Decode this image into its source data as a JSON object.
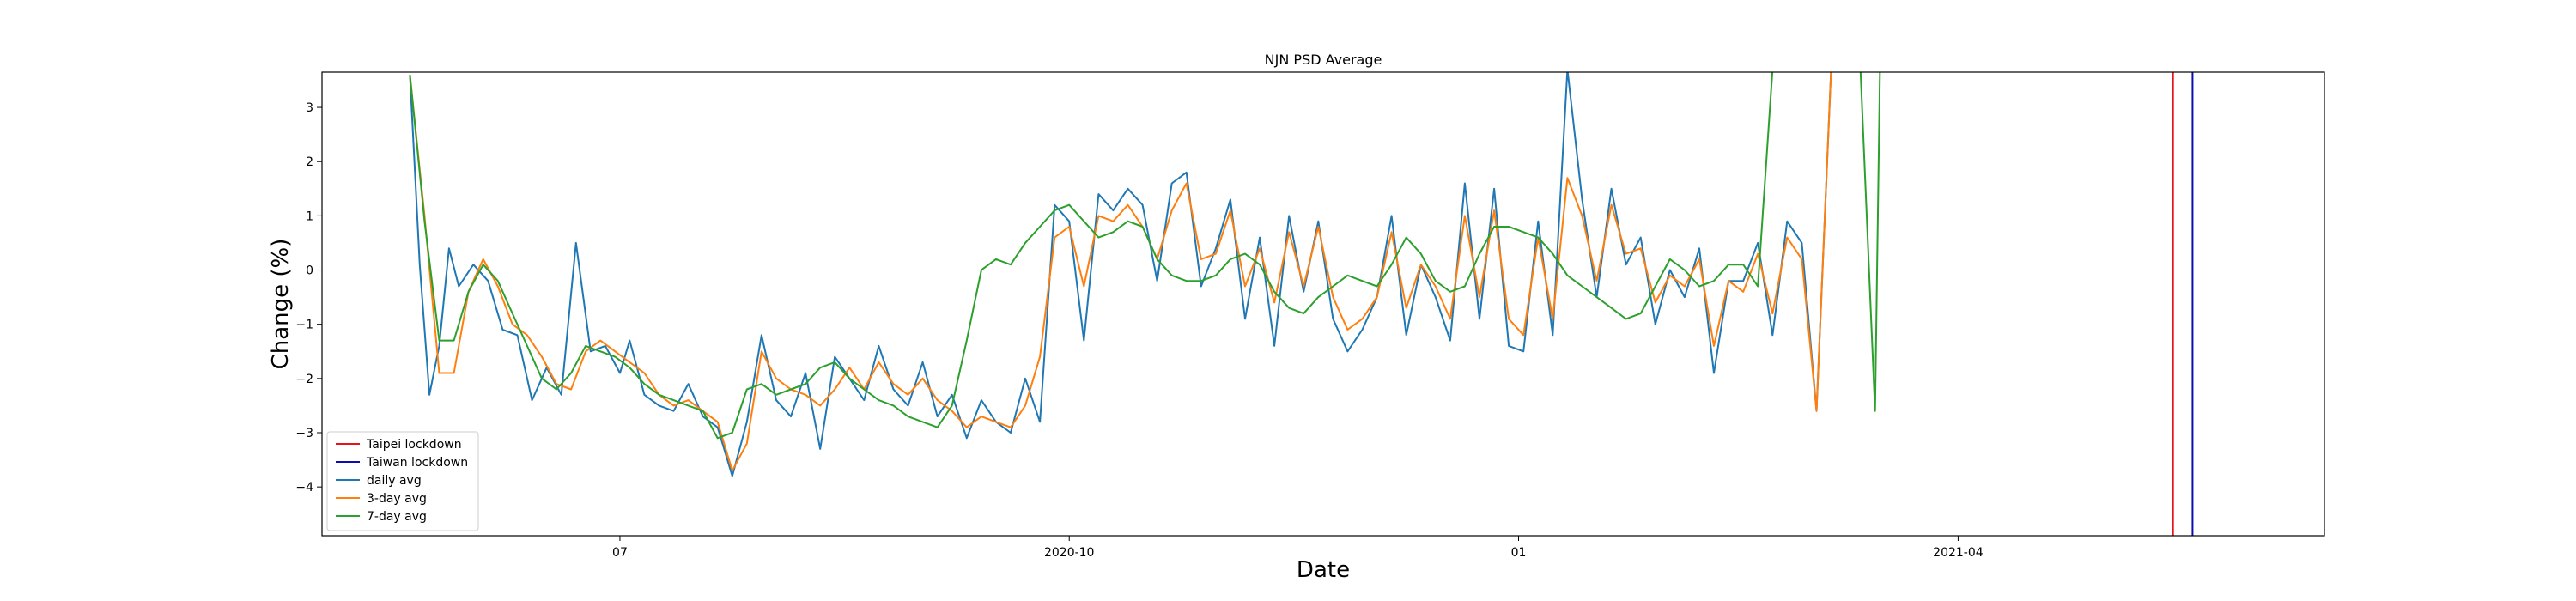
{
  "chart_data": {
    "type": "line",
    "title": "NJN PSD Average",
    "xlabel": "Date",
    "ylabel": "Change (%)",
    "xlim": [
      "2020-05-01",
      "2021-06-15"
    ],
    "ylim": [
      -4.9,
      3.65
    ],
    "x_ticks": [
      {
        "date": "2020-07-01",
        "label": "07"
      },
      {
        "date": "2020-10-01",
        "label": "2020-10"
      },
      {
        "date": "2021-01-01",
        "label": "01"
      },
      {
        "date": "2021-04-01",
        "label": "2021-04"
      }
    ],
    "y_ticks": [
      -4,
      -3,
      -2,
      -1,
      0,
      1,
      2,
      3
    ],
    "legend_position": "lower-left",
    "vlines": [
      {
        "name": "Taipei lockdown",
        "date": "2021-05-15",
        "color": "#e6131b"
      },
      {
        "name": "Taiwan lockdown",
        "date": "2021-05-19",
        "color": "#0c0cb0"
      }
    ],
    "series": [
      {
        "name": "daily avg",
        "color": "#1f77b4",
        "x": [
          "2020-05-19",
          "2020-05-21",
          "2020-05-23",
          "2020-05-25",
          "2020-05-27",
          "2020-05-29",
          "2020-06-01",
          "2020-06-04",
          "2020-06-07",
          "2020-06-10",
          "2020-06-13",
          "2020-06-16",
          "2020-06-19",
          "2020-06-22",
          "2020-06-25",
          "2020-06-28",
          "2020-07-01",
          "2020-07-03",
          "2020-07-06",
          "2020-07-09",
          "2020-07-12",
          "2020-07-15",
          "2020-07-18",
          "2020-07-21",
          "2020-07-24",
          "2020-07-27",
          "2020-07-30",
          "2020-08-02",
          "2020-08-05",
          "2020-08-08",
          "2020-08-11",
          "2020-08-14",
          "2020-08-17",
          "2020-08-20",
          "2020-08-23",
          "2020-08-26",
          "2020-08-29",
          "2020-09-01",
          "2020-09-04",
          "2020-09-07",
          "2020-09-10",
          "2020-09-13",
          "2020-09-16",
          "2020-09-19",
          "2020-09-22",
          "2020-09-25",
          "2020-09-28",
          "2020-10-01",
          "2020-10-04",
          "2020-10-07",
          "2020-10-10",
          "2020-10-13",
          "2020-10-16",
          "2020-10-19",
          "2020-10-22",
          "2020-10-25",
          "2020-10-28",
          "2020-10-31",
          "2020-11-03",
          "2020-11-06",
          "2020-11-09",
          "2020-11-12",
          "2020-11-15",
          "2020-11-18",
          "2020-11-21",
          "2020-11-24",
          "2020-11-27",
          "2020-11-30",
          "2020-12-03",
          "2020-12-06",
          "2020-12-09",
          "2020-12-12",
          "2020-12-15",
          "2020-12-18",
          "2020-12-21",
          "2020-12-24",
          "2020-12-27",
          "2020-12-30",
          "2021-01-02",
          "2021-01-05",
          "2021-01-08",
          "2021-01-11",
          "2021-01-14",
          "2021-01-17",
          "2021-01-20",
          "2021-01-23",
          "2021-01-26",
          "2021-01-29",
          "2021-02-01",
          "2021-02-04",
          "2021-02-07",
          "2021-02-10",
          "2021-02-13",
          "2021-02-16",
          "2021-02-19",
          "2021-02-22",
          "2021-02-25",
          "2021-02-28",
          "2021-03-03",
          "2021-03-06",
          "2021-03-09",
          "2021-03-10"
        ],
        "values": [
          3.6,
          0.1,
          -2.3,
          -1.4,
          0.4,
          -0.3,
          0.1,
          -0.2,
          -1.1,
          -1.2,
          -2.4,
          -1.8,
          -2.3,
          0.5,
          -1.5,
          -1.4,
          -1.9,
          -1.3,
          -2.3,
          -2.5,
          -2.6,
          -2.1,
          -2.7,
          -2.9,
          -3.8,
          -2.8,
          -1.2,
          -2.4,
          -2.7,
          -1.9,
          -3.3,
          -1.6,
          -2.0,
          -2.4,
          -1.4,
          -2.2,
          -2.5,
          -1.7,
          -2.7,
          -2.3,
          -3.1,
          -2.4,
          -2.8,
          -3.0,
          -2.0,
          -2.8,
          1.2,
          0.9,
          -1.3,
          1.4,
          1.1,
          1.5,
          1.2,
          -0.2,
          1.6,
          1.8,
          -0.3,
          0.4,
          1.3,
          -0.9,
          0.6,
          -1.4,
          1.0,
          -0.4,
          0.9,
          -0.9,
          -1.5,
          -1.1,
          -0.5,
          1.0,
          -1.2,
          0.1,
          -0.5,
          -1.3,
          1.6,
          -0.9,
          1.5,
          -1.4,
          -1.5,
          0.9,
          -1.2,
          3.7,
          1.3,
          -0.5,
          1.5,
          0.1,
          0.6,
          -1.0,
          0.0,
          -0.5,
          0.4,
          -1.9,
          -0.2,
          -0.2,
          0.5,
          -1.2,
          0.9,
          0.5,
          -2.6,
          3.7,
          3.7,
          3.7
        ]
      },
      {
        "name": "3-day avg",
        "color": "#ff7f0e",
        "x": [
          "2020-05-19",
          "2020-05-22",
          "2020-05-25",
          "2020-05-28",
          "2020-05-31",
          "2020-06-03",
          "2020-06-06",
          "2020-06-09",
          "2020-06-12",
          "2020-06-15",
          "2020-06-18",
          "2020-06-21",
          "2020-06-24",
          "2020-06-27",
          "2020-06-30",
          "2020-07-03",
          "2020-07-06",
          "2020-07-09",
          "2020-07-12",
          "2020-07-15",
          "2020-07-18",
          "2020-07-21",
          "2020-07-24",
          "2020-07-27",
          "2020-07-30",
          "2020-08-02",
          "2020-08-05",
          "2020-08-08",
          "2020-08-11",
          "2020-08-14",
          "2020-08-17",
          "2020-08-20",
          "2020-08-23",
          "2020-08-26",
          "2020-08-29",
          "2020-09-01",
          "2020-09-04",
          "2020-09-07",
          "2020-09-10",
          "2020-09-13",
          "2020-09-16",
          "2020-09-19",
          "2020-09-22",
          "2020-09-25",
          "2020-09-28",
          "2020-10-01",
          "2020-10-04",
          "2020-10-07",
          "2020-10-10",
          "2020-10-13",
          "2020-10-16",
          "2020-10-19",
          "2020-10-22",
          "2020-10-25",
          "2020-10-28",
          "2020-10-31",
          "2020-11-03",
          "2020-11-06",
          "2020-11-09",
          "2020-11-12",
          "2020-11-15",
          "2020-11-18",
          "2020-11-21",
          "2020-11-24",
          "2020-11-27",
          "2020-11-30",
          "2020-12-03",
          "2020-12-06",
          "2020-12-09",
          "2020-12-12",
          "2020-12-15",
          "2020-12-18",
          "2020-12-21",
          "2020-12-24",
          "2020-12-27",
          "2020-12-30",
          "2021-01-02",
          "2021-01-05",
          "2021-01-08",
          "2021-01-11",
          "2021-01-14",
          "2021-01-17",
          "2021-01-20",
          "2021-01-23",
          "2021-01-26",
          "2021-01-29",
          "2021-02-01",
          "2021-02-04",
          "2021-02-07",
          "2021-02-10",
          "2021-02-13",
          "2021-02-16",
          "2021-02-19",
          "2021-02-22",
          "2021-02-25",
          "2021-02-28",
          "2021-03-03",
          "2021-03-06",
          "2021-03-09",
          "2021-03-12"
        ],
        "values": [
          3.6,
          1.0,
          -1.9,
          -1.9,
          -0.4,
          0.2,
          -0.3,
          -1.0,
          -1.2,
          -1.6,
          -2.1,
          -2.2,
          -1.5,
          -1.3,
          -1.5,
          -1.7,
          -1.9,
          -2.3,
          -2.5,
          -2.4,
          -2.6,
          -2.8,
          -3.7,
          -3.2,
          -1.5,
          -2.0,
          -2.2,
          -2.3,
          -2.5,
          -2.2,
          -1.8,
          -2.2,
          -1.7,
          -2.1,
          -2.3,
          -2.0,
          -2.4,
          -2.6,
          -2.9,
          -2.7,
          -2.8,
          -2.9,
          -2.5,
          -1.6,
          0.6,
          0.8,
          -0.3,
          1.0,
          0.9,
          1.2,
          0.8,
          0.2,
          1.1,
          1.6,
          0.2,
          0.3,
          1.1,
          -0.3,
          0.4,
          -0.6,
          0.7,
          -0.3,
          0.8,
          -0.5,
          -1.1,
          -0.9,
          -0.5,
          0.7,
          -0.7,
          0.1,
          -0.3,
          -0.9,
          1.0,
          -0.5,
          1.1,
          -0.9,
          -1.2,
          0.6,
          -0.9,
          1.7,
          1.0,
          -0.2,
          1.2,
          0.3,
          0.4,
          -0.6,
          -0.1,
          -0.3,
          0.2,
          -1.4,
          -0.2,
          -0.4,
          0.3,
          -0.8,
          0.6,
          0.2,
          -2.6,
          3.7,
          3.7,
          3.7
        ]
      },
      {
        "name": "7-day avg",
        "color": "#2ca02c",
        "x": [
          "2020-05-19",
          "2020-05-22",
          "2020-05-25",
          "2020-05-28",
          "2020-05-31",
          "2020-06-03",
          "2020-06-06",
          "2020-06-09",
          "2020-06-12",
          "2020-06-15",
          "2020-06-18",
          "2020-06-21",
          "2020-06-24",
          "2020-06-27",
          "2020-06-30",
          "2020-07-03",
          "2020-07-06",
          "2020-07-09",
          "2020-07-12",
          "2020-07-15",
          "2020-07-18",
          "2020-07-21",
          "2020-07-24",
          "2020-07-27",
          "2020-07-30",
          "2020-08-02",
          "2020-08-05",
          "2020-08-08",
          "2020-08-11",
          "2020-08-14",
          "2020-08-17",
          "2020-08-20",
          "2020-08-23",
          "2020-08-26",
          "2020-08-29",
          "2020-09-01",
          "2020-09-04",
          "2020-09-07",
          "2020-09-10",
          "2020-09-13",
          "2020-09-16",
          "2020-09-19",
          "2020-09-22",
          "2020-09-25",
          "2020-09-28",
          "2020-10-01",
          "2020-10-04",
          "2020-10-07",
          "2020-10-10",
          "2020-10-13",
          "2020-10-16",
          "2020-10-19",
          "2020-10-22",
          "2020-10-25",
          "2020-10-28",
          "2020-10-31",
          "2020-11-03",
          "2020-11-06",
          "2020-11-09",
          "2020-11-12",
          "2020-11-15",
          "2020-11-18",
          "2020-11-21",
          "2020-11-24",
          "2020-11-27",
          "2020-11-30",
          "2020-12-03",
          "2020-12-06",
          "2020-12-09",
          "2020-12-12",
          "2020-12-15",
          "2020-12-18",
          "2020-12-21",
          "2020-12-24",
          "2020-12-27",
          "2020-12-30",
          "2021-01-02",
          "2021-01-05",
          "2021-01-08",
          "2021-01-11",
          "2021-01-14",
          "2021-01-17",
          "2021-01-20",
          "2021-01-23",
          "2021-01-26",
          "2021-01-29",
          "2021-02-01",
          "2021-02-04",
          "2021-02-07",
          "2021-02-10",
          "2021-02-13",
          "2021-02-16",
          "2021-02-19",
          "2021-02-22",
          "2021-02-25",
          "2021-02-28",
          "2021-03-03",
          "2021-03-06",
          "2021-03-09",
          "2021-03-12",
          "2021-03-15",
          "2021-03-16"
        ],
        "values": [
          3.6,
          0.9,
          -1.3,
          -1.3,
          -0.4,
          0.1,
          -0.2,
          -0.8,
          -1.4,
          -2.0,
          -2.2,
          -1.9,
          -1.4,
          -1.5,
          -1.6,
          -1.8,
          -2.1,
          -2.3,
          -2.4,
          -2.5,
          -2.6,
          -3.1,
          -3.0,
          -2.2,
          -2.1,
          -2.3,
          -2.2,
          -2.1,
          -1.8,
          -1.7,
          -2.0,
          -2.2,
          -2.4,
          -2.5,
          -2.7,
          -2.8,
          -2.9,
          -2.5,
          -1.3,
          0.0,
          0.2,
          0.1,
          0.5,
          0.8,
          1.1,
          1.2,
          0.9,
          0.6,
          0.7,
          0.9,
          0.8,
          0.2,
          -0.1,
          -0.2,
          -0.2,
          -0.1,
          0.2,
          0.3,
          0.1,
          -0.4,
          -0.7,
          -0.8,
          -0.5,
          -0.3,
          -0.1,
          -0.2,
          -0.3,
          0.1,
          0.6,
          0.3,
          -0.2,
          -0.4,
          -0.3,
          0.3,
          0.8,
          0.8,
          0.7,
          0.6,
          0.3,
          -0.1,
          -0.3,
          -0.5,
          -0.7,
          -0.9,
          -0.8,
          -0.3,
          0.2,
          0.0,
          -0.3,
          -0.2,
          0.1,
          0.1,
          -0.3,
          3.7,
          3.7,
          3.7,
          3.7,
          3.7,
          3.7,
          3.7,
          -2.6,
          3.7
        ]
      }
    ]
  }
}
